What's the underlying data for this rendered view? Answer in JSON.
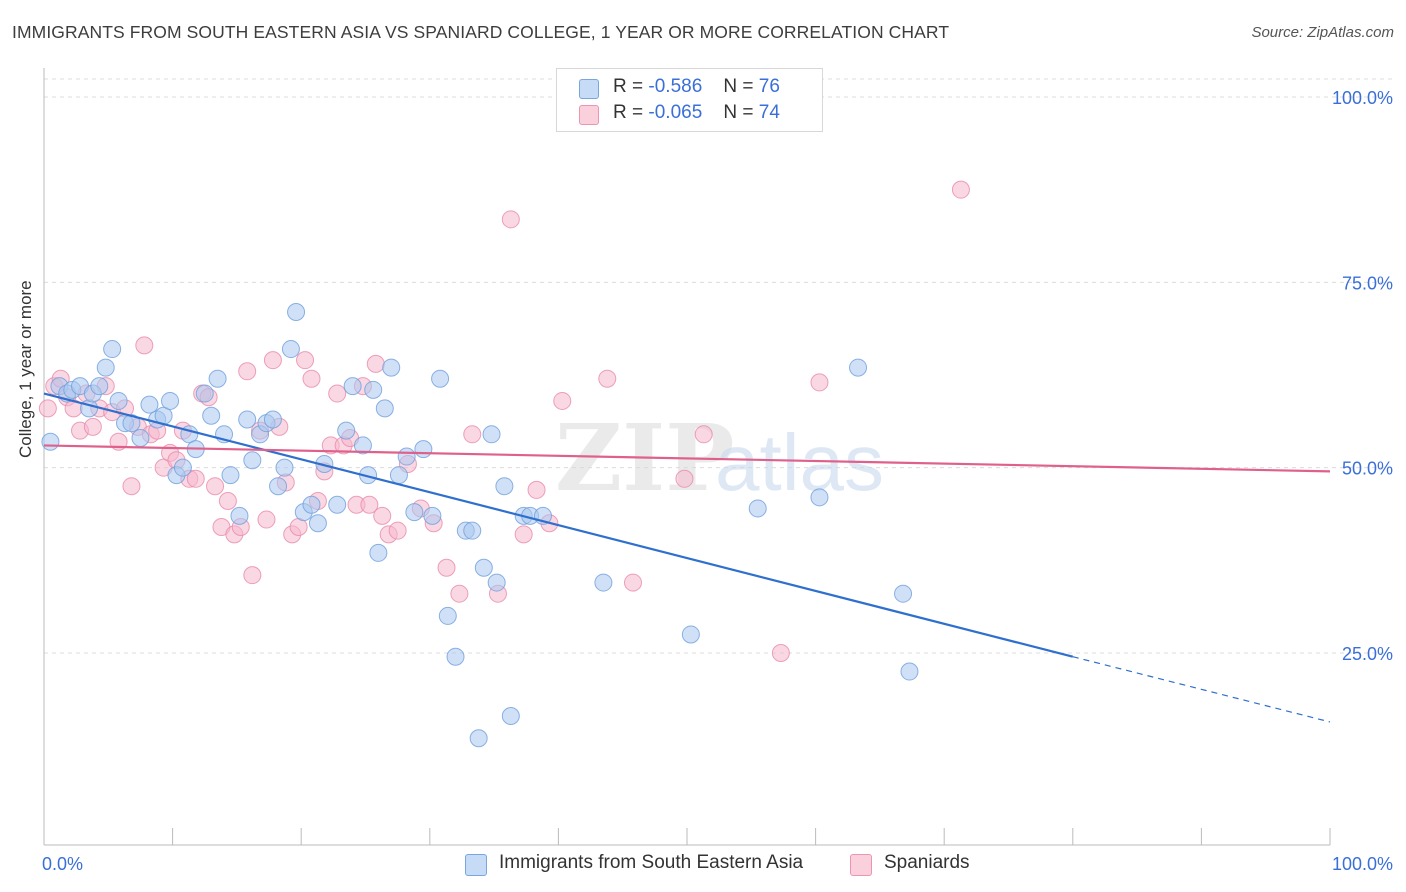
{
  "title": "IMMIGRANTS FROM SOUTH EASTERN ASIA VS SPANIARD COLLEGE, 1 YEAR OR MORE CORRELATION CHART",
  "source": "Source: ZipAtlas.com",
  "watermark": "ZIPatlas",
  "legend_top": {
    "rows": [
      {
        "r_label": "R =",
        "r_value": "-0.586",
        "n_label": "N =",
        "n_value": "76",
        "color": "#a9c8f0"
      },
      {
        "r_label": "R =",
        "r_value": "-0.065",
        "n_label": "N =",
        "n_value": "74",
        "color": "#f5b8cc"
      }
    ]
  },
  "legend_bottom": [
    {
      "label": "Immigrants from South Eastern Asia",
      "color": "#a9c8f0"
    },
    {
      "label": "Spaniards",
      "color": "#f5b8cc"
    }
  ],
  "colors": {
    "blue_line": "#2f6fce",
    "pink_line": "#e0608c",
    "blue_point": "#a9c8f0",
    "pink_point": "#f5b8cc",
    "axis_text": "#3a6fd8"
  },
  "chart_data": {
    "type": "scatter",
    "title": "IMMIGRANTS FROM SOUTH EASTERN ASIA VS SPANIARD COLLEGE, 1 YEAR OR MORE CORRELATION CHART",
    "xlabel": "",
    "ylabel": "College, 1 year or more",
    "xlim": [
      0,
      100
    ],
    "ylim": [
      0,
      105
    ],
    "x_tick_labels": [
      "0.0%",
      "100.0%"
    ],
    "y_ticks": [
      25,
      50,
      75,
      100
    ],
    "y_tick_labels": [
      "25.0%",
      "50.0%",
      "75.0%",
      "100.0%"
    ],
    "grid": true,
    "legend_position": "top-center",
    "series": [
      {
        "name": "Immigrants from South Eastern Asia",
        "color": "#a9c8f0",
        "points": [
          [
            0.5,
            53.5
          ],
          [
            1.2,
            61
          ],
          [
            1.8,
            60
          ],
          [
            2.2,
            60.5
          ],
          [
            2.8,
            61
          ],
          [
            3.5,
            58
          ],
          [
            3.8,
            60
          ],
          [
            4.3,
            61
          ],
          [
            4.8,
            63.5
          ],
          [
            5.3,
            66
          ],
          [
            5.8,
            59
          ],
          [
            6.3,
            56
          ],
          [
            6.8,
            56
          ],
          [
            7.5,
            54
          ],
          [
            8.2,
            58.5
          ],
          [
            8.8,
            56.5
          ],
          [
            9.3,
            57
          ],
          [
            9.8,
            59
          ],
          [
            10.3,
            49
          ],
          [
            10.8,
            50
          ],
          [
            11.3,
            54.5
          ],
          [
            11.8,
            52.5
          ],
          [
            12.5,
            60
          ],
          [
            13,
            57
          ],
          [
            13.5,
            62
          ],
          [
            14,
            54.5
          ],
          [
            14.5,
            49
          ],
          [
            15.2,
            43.5
          ],
          [
            15.8,
            56.5
          ],
          [
            16.2,
            51
          ],
          [
            16.8,
            54.5
          ],
          [
            17.3,
            56
          ],
          [
            17.8,
            56.5
          ],
          [
            18.2,
            47.5
          ],
          [
            18.7,
            50
          ],
          [
            19.2,
            66
          ],
          [
            19.6,
            71
          ],
          [
            20.2,
            44
          ],
          [
            20.8,
            45
          ],
          [
            21.3,
            42.5
          ],
          [
            21.8,
            50.5
          ],
          [
            22.8,
            45
          ],
          [
            23.5,
            55
          ],
          [
            24,
            61
          ],
          [
            24.8,
            53
          ],
          [
            25.2,
            49
          ],
          [
            25.6,
            60.5
          ],
          [
            26,
            38.5
          ],
          [
            26.5,
            58
          ],
          [
            27,
            63.5
          ],
          [
            27.6,
            49
          ],
          [
            28.2,
            51.5
          ],
          [
            28.8,
            44
          ],
          [
            29.5,
            52.5
          ],
          [
            30.2,
            43.5
          ],
          [
            30.8,
            62
          ],
          [
            31.4,
            30
          ],
          [
            32,
            24.5
          ],
          [
            32.8,
            41.5
          ],
          [
            33.3,
            41.5
          ],
          [
            33.8,
            13.5
          ],
          [
            34.2,
            36.5
          ],
          [
            34.8,
            54.5
          ],
          [
            35.2,
            34.5
          ],
          [
            35.8,
            47.5
          ],
          [
            36.3,
            16.5
          ],
          [
            37.3,
            43.5
          ],
          [
            37.8,
            43.5
          ],
          [
            38.8,
            43.5
          ],
          [
            43.5,
            34.5
          ],
          [
            50.3,
            27.5
          ],
          [
            55.5,
            44.5
          ],
          [
            60.3,
            46
          ],
          [
            63.3,
            63.5
          ],
          [
            66.8,
            33
          ],
          [
            67.3,
            22.5
          ]
        ]
      },
      {
        "name": "Spaniards",
        "color": "#f5b8cc",
        "points": [
          [
            0.3,
            58
          ],
          [
            0.8,
            61
          ],
          [
            1.3,
            62
          ],
          [
            1.8,
            59.5
          ],
          [
            2.3,
            58
          ],
          [
            2.8,
            55
          ],
          [
            3.3,
            60
          ],
          [
            3.8,
            55.5
          ],
          [
            4.3,
            58
          ],
          [
            4.8,
            61
          ],
          [
            5.3,
            57.5
          ],
          [
            5.8,
            53.5
          ],
          [
            6.3,
            58
          ],
          [
            6.8,
            47.5
          ],
          [
            7.3,
            55.5
          ],
          [
            7.8,
            66.5
          ],
          [
            8.3,
            54.5
          ],
          [
            8.8,
            55
          ],
          [
            9.3,
            50
          ],
          [
            9.8,
            52
          ],
          [
            10.3,
            51
          ],
          [
            10.8,
            55
          ],
          [
            11.3,
            48.5
          ],
          [
            11.8,
            48.5
          ],
          [
            12.3,
            60
          ],
          [
            12.8,
            59.5
          ],
          [
            13.3,
            47.5
          ],
          [
            13.8,
            42
          ],
          [
            14.3,
            45.5
          ],
          [
            14.8,
            41
          ],
          [
            15.3,
            42
          ],
          [
            15.8,
            63
          ],
          [
            16.2,
            35.5
          ],
          [
            16.8,
            55
          ],
          [
            17.3,
            43
          ],
          [
            17.8,
            64.5
          ],
          [
            18.3,
            55.5
          ],
          [
            18.8,
            48
          ],
          [
            19.3,
            41
          ],
          [
            19.8,
            42
          ],
          [
            20.3,
            64.5
          ],
          [
            20.8,
            62
          ],
          [
            21.3,
            45.5
          ],
          [
            21.8,
            49.5
          ],
          [
            22.3,
            53
          ],
          [
            22.8,
            60
          ],
          [
            23.3,
            53
          ],
          [
            23.8,
            54
          ],
          [
            24.3,
            45
          ],
          [
            24.8,
            61
          ],
          [
            25.3,
            45
          ],
          [
            25.8,
            64
          ],
          [
            26.3,
            43.5
          ],
          [
            26.8,
            41
          ],
          [
            27.5,
            41.5
          ],
          [
            28.3,
            50.5
          ],
          [
            29.3,
            44.5
          ],
          [
            30.3,
            42.5
          ],
          [
            31.3,
            36.5
          ],
          [
            32.3,
            33
          ],
          [
            33.3,
            54.5
          ],
          [
            35.3,
            33
          ],
          [
            36.3,
            83.5
          ],
          [
            37.3,
            41
          ],
          [
            38.3,
            47
          ],
          [
            39.3,
            42.5
          ],
          [
            40.3,
            59
          ],
          [
            43.8,
            62
          ],
          [
            45.8,
            34.5
          ],
          [
            49.8,
            48.5
          ],
          [
            51.3,
            54.5
          ],
          [
            57.3,
            25
          ],
          [
            60.3,
            61.5
          ],
          [
            71.3,
            87.5
          ]
        ]
      }
    ],
    "trendlines": [
      {
        "series": "Immigrants from South Eastern Asia",
        "x": [
          0,
          80
        ],
        "y": [
          60,
          24.5
        ],
        "dashed_extension_x": [
          80,
          100
        ],
        "dashed_extension_y": [
          24.5,
          15.7
        ]
      },
      {
        "series": "Spaniards",
        "x": [
          0,
          100
        ],
        "y": [
          53,
          49.5
        ]
      }
    ]
  }
}
